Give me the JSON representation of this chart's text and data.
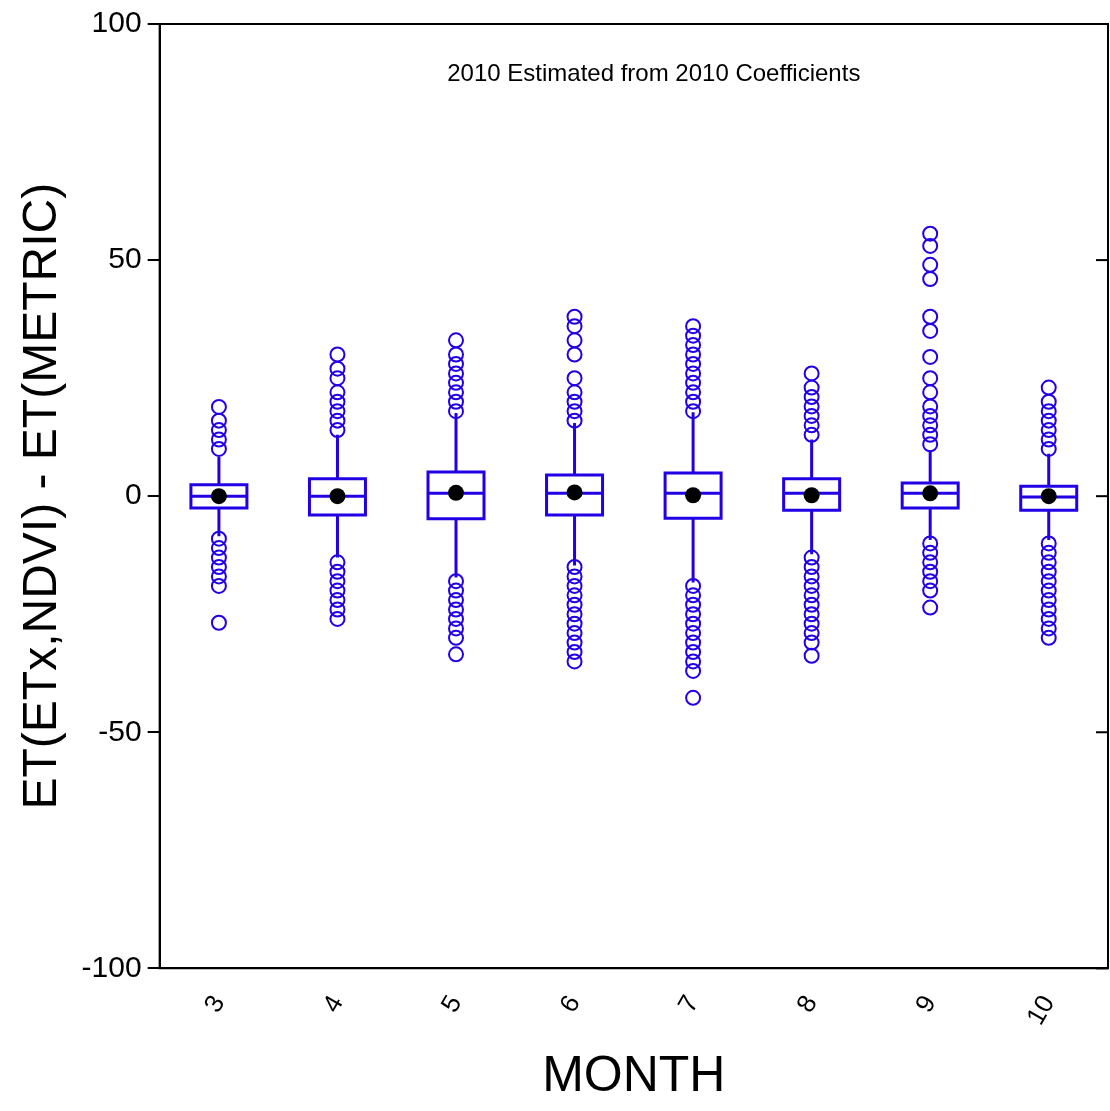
{
  "chart_data": {
    "type": "box",
    "title": "2010 Estimated from 2010 Coefficients",
    "xlabel": "MONTH",
    "ylabel": "ET(ETx,NDVI) - ET(METRIC)",
    "categories": [
      "3",
      "4",
      "5",
      "6",
      "7",
      "8",
      "9",
      "10"
    ],
    "color": "#2200e6",
    "boxes": [
      {
        "low": -8.5,
        "q1": -2.5,
        "median": 0,
        "q3": 2.4,
        "high": 8.3,
        "mean": 0,
        "outliers": [
          10,
          12,
          14,
          16,
          18.9,
          -9,
          -11,
          -13,
          -15,
          -17,
          -19,
          -26.8
        ]
      },
      {
        "low": -13,
        "q1": -4,
        "median": 0,
        "q3": 3.7,
        "high": 13,
        "mean": 0,
        "outliers": [
          14,
          16,
          18,
          20,
          22,
          25,
          27,
          30,
          -14,
          -16,
          -18,
          -20,
          -22,
          -24,
          -26
        ]
      },
      {
        "low": -17.2,
        "q1": -4.8,
        "median": 0.6,
        "q3": 5.1,
        "high": 17.6,
        "mean": 0.7,
        "outliers": [
          18,
          20,
          22,
          24,
          26,
          28,
          30,
          33,
          -18,
          -20,
          -22,
          -24,
          -26,
          -28,
          -30,
          -33.5
        ]
      },
      {
        "low": -14.7,
        "q1": -4,
        "median": 0.6,
        "q3": 4.5,
        "high": 15.5,
        "mean": 0.8,
        "outliers": [
          16,
          18,
          20,
          22,
          25,
          30,
          33,
          36,
          38,
          -15,
          -17,
          -19,
          -21,
          -23,
          -25,
          -27,
          -29,
          -31,
          -33,
          -35
        ]
      },
      {
        "low": -18.3,
        "q1": -4.7,
        "median": 0.6,
        "q3": 4.9,
        "high": 17.8,
        "mean": 0.2,
        "outliers": [
          18,
          20,
          22,
          24,
          26,
          28,
          30,
          32,
          34,
          36,
          -19,
          -21,
          -23,
          -25,
          -27,
          -29,
          -31,
          -33,
          -35,
          -37,
          -42.7
        ]
      },
      {
        "low": -12.3,
        "q1": -3,
        "median": 0.6,
        "q3": 3.7,
        "high": 12,
        "mean": 0.2,
        "outliers": [
          13,
          15,
          17,
          19,
          21,
          23,
          26,
          -13,
          -15,
          -17,
          -19,
          -21,
          -23,
          -25,
          -27,
          -29,
          -31,
          -33.8
        ]
      },
      {
        "low": -9.3,
        "q1": -2.5,
        "median": 0.6,
        "q3": 2.8,
        "high": 9.8,
        "mean": 0.6,
        "outliers": [
          11,
          13,
          15,
          17,
          19,
          22,
          25,
          29.5,
          35,
          38,
          46,
          49,
          53,
          55.6,
          -10,
          -12,
          -14,
          -16,
          -18,
          -20,
          -23.6
        ]
      },
      {
        "low": -9.3,
        "q1": -3,
        "median": -0.2,
        "q3": 2.1,
        "high": 9,
        "mean": 0,
        "outliers": [
          10,
          12,
          14,
          16,
          18,
          20,
          23,
          -10,
          -12,
          -14,
          -16,
          -18,
          -20,
          -22,
          -24,
          -26,
          -28,
          -30
        ]
      }
    ],
    "ylim": [
      -100,
      100
    ],
    "yticks": [
      -100,
      -50,
      0,
      50,
      100
    ],
    "grid": false,
    "legend": false
  }
}
